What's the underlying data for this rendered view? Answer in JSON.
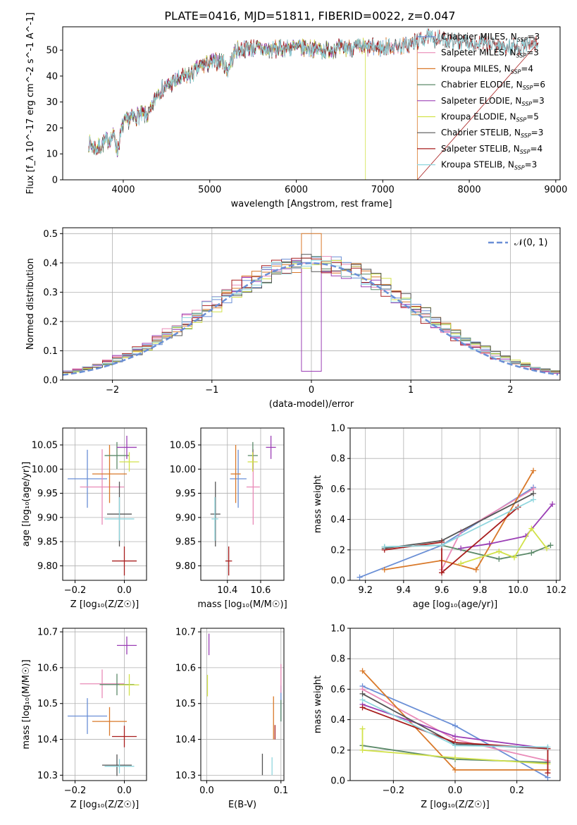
{
  "title": "PLATE=0416, MJD=51811, FIBERID=0022, z=0.047",
  "colors": [
    "#6a8fd6",
    "#e98bb8",
    "#d9792a",
    "#5c8a6a",
    "#9b3fb5",
    "#d2e24a",
    "#555555",
    "#a81e1e",
    "#8fd6de"
  ],
  "chart_data": [
    {
      "id": "spectrum",
      "type": "line",
      "xlabel": "wavelength [Angstrom, rest frame]",
      "ylabel": "Flux [f_λ 10^-17 erg cm^-2 s^-1 A^-1]",
      "xlim": [
        3300,
        9050
      ],
      "ylim": [
        0,
        59
      ],
      "xticks": [
        4000,
        5000,
        6000,
        7000,
        8000,
        9000
      ],
      "yticks": [
        0,
        10,
        20,
        30,
        40,
        50
      ],
      "legend_position": "top-right",
      "series": [
        {
          "name": "Chabrier MILES",
          "nssp": "3",
          "x_range": [
            3600,
            7400
          ]
        },
        {
          "name": "Salpeter MILES",
          "nssp": "3",
          "x_range": [
            3600,
            7400
          ]
        },
        {
          "name": "Kroupa MILES",
          "nssp": "4",
          "x_range": [
            3600,
            7400
          ]
        },
        {
          "name": "Chabrier ELODIE",
          "nssp": "6",
          "x_range": [
            3600,
            6800
          ]
        },
        {
          "name": "Salpeter ELODIE",
          "nssp": "3",
          "x_range": [
            3600,
            6800
          ]
        },
        {
          "name": "Kroupa ELODIE",
          "nssp": "5",
          "x_range": [
            3600,
            6800
          ]
        },
        {
          "name": "Chabrier STELIB",
          "nssp": "3",
          "x_range": [
            3600,
            8800
          ]
        },
        {
          "name": "Salpeter STELIB",
          "nssp": "4",
          "x_range": [
            3600,
            8800
          ]
        },
        {
          "name": "Kroupa STELIB",
          "nssp": "3",
          "x_range": [
            3600,
            8800
          ]
        }
      ],
      "continuum_knots": [
        [
          3600,
          14
        ],
        [
          3700,
          12
        ],
        [
          3800,
          15
        ],
        [
          3900,
          17
        ],
        [
          3930,
          11
        ],
        [
          4000,
          22
        ],
        [
          4100,
          24
        ],
        [
          4200,
          25
        ],
        [
          4300,
          25
        ],
        [
          4400,
          34
        ],
        [
          4600,
          38
        ],
        [
          4800,
          41
        ],
        [
          4900,
          44
        ],
        [
          5000,
          45
        ],
        [
          5150,
          46
        ],
        [
          5200,
          42
        ],
        [
          5300,
          50
        ],
        [
          5500,
          51
        ],
        [
          5700,
          50
        ],
        [
          5900,
          51
        ],
        [
          6100,
          51
        ],
        [
          6300,
          50
        ],
        [
          6600,
          51
        ],
        [
          7000,
          51
        ],
        [
          7300,
          52
        ],
        [
          7500,
          55
        ],
        [
          7700,
          54
        ],
        [
          8000,
          53
        ],
        [
          8300,
          52
        ],
        [
          8500,
          51
        ],
        [
          8800,
          52
        ]
      ]
    },
    {
      "id": "residuals",
      "type": "line",
      "xlabel": "(data-model)/error",
      "ylabel": "Normed distribution",
      "xlim": [
        -2.5,
        2.5
      ],
      "ylim": [
        0,
        0.52
      ],
      "xticks": [
        -2,
        -1,
        0,
        1,
        2
      ],
      "yticks": [
        0.0,
        0.1,
        0.2,
        0.3,
        0.4,
        0.5
      ],
      "grid": true,
      "legend_position": "top-right",
      "legend_label": "𝒩(0, 1)"
    },
    {
      "id": "age-vs-z",
      "type": "scatter",
      "xlabel": "Z [log₁₀(Z/Z☉)]",
      "ylabel": "age  [log₁₀(age/yr)]",
      "xlim": [
        -0.25,
        0.09
      ],
      "ylim": [
        9.77,
        10.085
      ],
      "xticks": [
        -0.2,
        0.0
      ],
      "yticks": [
        9.8,
        9.85,
        9.9,
        9.95,
        10.0,
        10.05
      ],
      "grid": true,
      "points": [
        {
          "x": -0.15,
          "xerr": 0.08,
          "y": 9.98,
          "yerr": 0.06
        },
        {
          "x": -0.09,
          "xerr": 0.09,
          "y": 9.963,
          "yerr": 0.078
        },
        {
          "x": -0.06,
          "xerr": 0.07,
          "y": 9.99,
          "yerr": 0.06
        },
        {
          "x": -0.03,
          "xerr": 0.05,
          "y": 10.028,
          "yerr": 0.028
        },
        {
          "x": 0.01,
          "xerr": 0.04,
          "y": 10.045,
          "yerr": 0.024
        },
        {
          "x": 0.02,
          "xerr": 0.04,
          "y": 10.015,
          "yerr": 0.02
        },
        {
          "x": -0.02,
          "xerr": 0.05,
          "y": 9.907,
          "yerr": 0.067
        },
        {
          "x": 0.0,
          "xerr": 0.05,
          "y": 9.81,
          "yerr": 0.03
        },
        {
          "x": -0.02,
          "xerr": 0.06,
          "y": 9.897,
          "yerr": 0.045
        }
      ]
    },
    {
      "id": "age-vs-mass",
      "type": "scatter",
      "xlabel": "mass [log₁₀(M/M☉)]",
      "ylabel": "",
      "xlim": [
        10.24,
        10.74
      ],
      "ylim": [
        9.77,
        10.085
      ],
      "xticks": [
        10.4,
        10.6
      ],
      "yticks": [
        9.8,
        9.85,
        9.9,
        9.95,
        10.0,
        10.05
      ],
      "grid": true,
      "points": [
        {
          "x": 10.465,
          "xerr": 0.05,
          "y": 9.98,
          "yerr": 0.06
        },
        {
          "x": 10.555,
          "xerr": 0.04,
          "y": 9.963,
          "yerr": 0.078
        },
        {
          "x": 10.45,
          "xerr": 0.03,
          "y": 9.99,
          "yerr": 0.06
        },
        {
          "x": 10.553,
          "xerr": 0.03,
          "y": 10.028,
          "yerr": 0.028
        },
        {
          "x": 10.662,
          "xerr": 0.03,
          "y": 10.045,
          "yerr": 0.024
        },
        {
          "x": 10.552,
          "xerr": 0.03,
          "y": 10.015,
          "yerr": 0.02
        },
        {
          "x": 10.328,
          "xerr": 0.03,
          "y": 9.907,
          "yerr": 0.067
        },
        {
          "x": 10.408,
          "xerr": 0.02,
          "y": 9.81,
          "yerr": 0.03
        },
        {
          "x": 10.325,
          "xerr": 0.02,
          "y": 9.897,
          "yerr": 0.045
        }
      ]
    },
    {
      "id": "mass-weight-vs-age",
      "type": "line",
      "xlabel": "age  [log₁₀(age/yr)]",
      "ylabel": "mass weight",
      "xlim": [
        9.12,
        10.22
      ],
      "ylim": [
        0.0,
        1.0
      ],
      "xticks": [
        9.2,
        9.4,
        9.6,
        9.8,
        10.0,
        10.2
      ],
      "yticks": [
        0.0,
        0.2,
        0.4,
        0.6,
        0.8,
        1.0
      ],
      "grid": true,
      "series": [
        {
          "points": [
            [
              9.17,
              0.02
            ],
            [
              9.6,
              0.23
            ],
            [
              10.08,
              0.61
            ]
          ]
        },
        {
          "points": [
            [
              9.6,
              0.07
            ],
            [
              9.7,
              0.32
            ],
            [
              10.08,
              0.6
            ]
          ]
        },
        {
          "points": [
            [
              9.3,
              0.07
            ],
            [
              9.6,
              0.13
            ],
            [
              9.78,
              0.07
            ],
            [
              10.08,
              0.72
            ]
          ]
        },
        {
          "points": [
            [
              9.3,
              0.22
            ],
            [
              9.6,
              0.23
            ],
            [
              9.9,
              0.14
            ],
            [
              10.07,
              0.18
            ],
            [
              10.17,
              0.23
            ]
          ]
        },
        {
          "points": [
            [
              9.7,
              0.21
            ],
            [
              9.85,
              0.24
            ],
            [
              10.04,
              0.29
            ],
            [
              10.18,
              0.5
            ]
          ]
        },
        {
          "points": [
            [
              9.7,
              0.11
            ],
            [
              9.9,
              0.19
            ],
            [
              9.98,
              0.15
            ],
            [
              10.07,
              0.34
            ],
            [
              10.15,
              0.21
            ]
          ]
        },
        {
          "points": [
            [
              9.3,
              0.21
            ],
            [
              9.6,
              0.26
            ],
            [
              10.08,
              0.57
            ]
          ]
        },
        {
          "points": [
            [
              9.3,
              0.2
            ],
            [
              9.6,
              0.25
            ],
            [
              9.6,
              0.05
            ],
            [
              10.0,
              0.48
            ]
          ]
        },
        {
          "points": [
            [
              9.3,
              0.22
            ],
            [
              9.6,
              0.23
            ],
            [
              10.08,
              0.53
            ]
          ]
        }
      ]
    },
    {
      "id": "mass-vs-z",
      "type": "scatter",
      "xlabel": "Z [log₁₀(Z/Z☉)]",
      "ylabel": "mass [log₁₀(M/M☉)]",
      "xlim": [
        -0.25,
        0.09
      ],
      "ylim": [
        10.285,
        10.71
      ],
      "xticks": [
        -0.2,
        0.0
      ],
      "yticks": [
        10.3,
        10.4,
        10.5,
        10.6,
        10.7
      ],
      "grid": true,
      "points": [
        {
          "x": -0.15,
          "xerr": 0.08,
          "y": 10.465,
          "yerr": 0.05
        },
        {
          "x": -0.09,
          "xerr": 0.09,
          "y": 10.555,
          "yerr": 0.04
        },
        {
          "x": -0.06,
          "xerr": 0.07,
          "y": 10.45,
          "yerr": 0.04
        },
        {
          "x": -0.03,
          "xerr": 0.07,
          "y": 10.553,
          "yerr": 0.03
        },
        {
          "x": 0.01,
          "xerr": 0.04,
          "y": 10.662,
          "yerr": 0.025
        },
        {
          "x": 0.02,
          "xerr": 0.04,
          "y": 10.552,
          "yerr": 0.03
        },
        {
          "x": -0.03,
          "xerr": 0.06,
          "y": 10.328,
          "yerr": 0.03
        },
        {
          "x": 0.0,
          "xerr": 0.05,
          "y": 10.408,
          "yerr": 0.03
        },
        {
          "x": -0.02,
          "xerr": 0.06,
          "y": 10.325,
          "yerr": 0.02
        }
      ]
    },
    {
      "id": "mass-vs-ebv",
      "type": "scatter",
      "xlabel": "E(B-V)",
      "ylabel": "",
      "xlim": [
        -0.008,
        0.104
      ],
      "ylim": [
        10.285,
        10.71
      ],
      "xticks": [
        0.0,
        0.1
      ],
      "yticks": [
        10.3,
        10.4,
        10.5,
        10.6,
        10.7
      ],
      "grid": true,
      "points": [
        {
          "x": 0.1,
          "y": 10.5,
          "yerr": 0.05
        },
        {
          "x": 0.1,
          "y": 10.57,
          "yerr": 0.04
        },
        {
          "x": 0.09,
          "y": 10.46,
          "yerr": 0.06
        },
        {
          "x": 0.1,
          "y": 10.48,
          "yerr": 0.03
        },
        {
          "x": 0.003,
          "y": 10.665,
          "yerr": 0.03
        },
        {
          "x": 0.001,
          "y": 10.55,
          "yerr": 0.03
        },
        {
          "x": 0.075,
          "y": 10.33,
          "yerr": 0.03
        },
        {
          "x": 0.092,
          "y": 10.42,
          "yerr": 0.02
        },
        {
          "x": 0.088,
          "y": 10.325,
          "yerr": 0.025
        }
      ]
    },
    {
      "id": "mass-weight-vs-z",
      "type": "line",
      "xlabel": "Z [log₁₀(Z/Z☉)]",
      "ylabel": "mass weight",
      "xlim": [
        -0.34,
        0.34
      ],
      "ylim": [
        0.0,
        1.0
      ],
      "xticks": [
        -0.2,
        0.0,
        0.2
      ],
      "yticks": [
        0.0,
        0.2,
        0.4,
        0.6,
        0.8,
        1.0
      ],
      "grid": true,
      "series": [
        {
          "points": [
            [
              -0.3,
              0.62
            ],
            [
              0.0,
              0.36
            ],
            [
              0.3,
              0.02
            ]
          ]
        },
        {
          "points": [
            [
              -0.3,
              0.6
            ],
            [
              0.0,
              0.27
            ],
            [
              0.3,
              0.13
            ]
          ]
        },
        {
          "points": [
            [
              -0.3,
              0.72
            ],
            [
              0.0,
              0.07
            ],
            [
              0.3,
              0.07
            ]
          ]
        },
        {
          "points": [
            [
              -0.3,
              0.23
            ],
            [
              0.0,
              0.14
            ],
            [
              0.3,
              0.12
            ]
          ]
        },
        {
          "points": [
            [
              -0.3,
              0.5
            ],
            [
              0.0,
              0.29
            ],
            [
              0.3,
              0.21
            ]
          ]
        },
        {
          "points": [
            [
              -0.3,
              0.34
            ],
            [
              -0.3,
              0.2
            ],
            [
              0.0,
              0.15
            ],
            [
              0.3,
              0.11
            ]
          ]
        },
        {
          "points": [
            [
              -0.3,
              0.57
            ],
            [
              0.0,
              0.24
            ],
            [
              0.3,
              0.21
            ]
          ]
        },
        {
          "points": [
            [
              -0.3,
              0.48
            ],
            [
              0.0,
              0.25
            ],
            [
              0.3,
              0.21
            ],
            [
              0.3,
              0.05
            ]
          ]
        },
        {
          "points": [
            [
              -0.3,
              0.53
            ],
            [
              0.0,
              0.23
            ],
            [
              0.3,
              0.22
            ]
          ]
        }
      ]
    }
  ]
}
